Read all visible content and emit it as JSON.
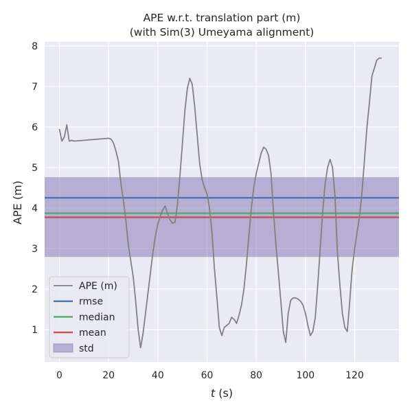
{
  "chart_data": {
    "type": "line",
    "title": "APE w.r.t. translation part (m)",
    "subtitle": "(with Sim(3) Umeyama alignment)",
    "xlabel_italic": "t",
    "xlabel_unit": " (s)",
    "ylabel": "APE (m)",
    "xlim": [
      -6,
      138
    ],
    "ylim": [
      0.2,
      8.1
    ],
    "xticks": [
      0,
      20,
      40,
      60,
      80,
      100,
      120
    ],
    "yticks": [
      1,
      2,
      3,
      4,
      5,
      6,
      7,
      8
    ],
    "grid": true,
    "legend_position": "lower-left",
    "colors": {
      "background": "#eaeaf2",
      "grid": "#ffffff",
      "ape": "#808080",
      "rmse": "#4c72b0",
      "median": "#55a868",
      "mean": "#c44e52",
      "std": "#8172b3"
    },
    "series": [
      {
        "name": "APE (m)",
        "x": [
          0,
          1,
          2,
          3,
          4,
          5,
          6,
          20,
          21,
          22,
          23,
          24,
          25,
          26,
          27,
          28,
          29,
          30,
          31,
          32,
          33,
          34,
          35,
          36,
          37,
          38,
          39,
          40,
          41,
          42,
          43,
          44,
          45,
          46,
          47,
          48,
          49,
          50,
          51,
          52,
          53,
          54,
          55,
          56,
          57,
          58,
          59,
          60,
          61,
          62,
          63,
          64,
          65,
          66,
          67,
          68,
          69,
          70,
          71,
          72,
          73,
          74,
          75,
          76,
          77,
          78,
          79,
          80,
          81,
          82,
          83,
          84,
          85,
          86,
          87,
          88,
          89,
          90,
          91,
          92,
          93,
          94,
          95,
          96,
          97,
          98,
          99,
          100,
          101,
          102,
          103,
          104,
          105,
          106,
          107,
          108,
          109,
          110,
          111,
          112,
          113,
          114,
          115,
          116,
          117,
          118,
          119,
          120,
          121,
          122,
          123,
          124,
          125,
          126,
          127,
          128,
          129,
          130,
          131
        ],
        "y": [
          5.95,
          5.65,
          5.75,
          6.05,
          5.65,
          5.67,
          5.65,
          5.72,
          5.7,
          5.6,
          5.4,
          5.15,
          4.6,
          4.2,
          3.7,
          3.1,
          2.7,
          2.3,
          1.7,
          1.0,
          0.55,
          0.9,
          1.4,
          1.9,
          2.4,
          2.9,
          3.3,
          3.6,
          3.8,
          3.95,
          4.05,
          3.85,
          3.7,
          3.62,
          3.65,
          4.1,
          4.8,
          5.6,
          6.4,
          6.95,
          7.2,
          7.05,
          6.5,
          5.8,
          5.1,
          4.7,
          4.5,
          4.35,
          4.0,
          3.4,
          2.5,
          1.8,
          1.05,
          0.85,
          1.05,
          1.1,
          1.15,
          1.3,
          1.25,
          1.15,
          1.35,
          1.6,
          2.0,
          2.6,
          3.3,
          4.0,
          4.5,
          4.85,
          5.1,
          5.35,
          5.5,
          5.45,
          5.3,
          4.85,
          3.9,
          3.1,
          2.4,
          1.7,
          0.95,
          0.68,
          1.4,
          1.72,
          1.78,
          1.78,
          1.75,
          1.7,
          1.6,
          1.4,
          1.1,
          0.85,
          0.95,
          1.3,
          2.1,
          3.0,
          3.9,
          4.6,
          5.0,
          5.2,
          5.0,
          4.3,
          2.9,
          2.1,
          1.4,
          1.05,
          0.95,
          1.7,
          2.5,
          3.0,
          3.4,
          3.8,
          4.4,
          5.2,
          6.0,
          6.6,
          7.25,
          7.45,
          7.65,
          7.7,
          7.7
        ]
      }
    ],
    "stats": {
      "rmse": 4.25,
      "median": 3.87,
      "mean": 3.77,
      "std_band": [
        2.79,
        4.76
      ]
    },
    "legend": [
      "APE (m)",
      "rmse",
      "median",
      "mean",
      "std"
    ]
  }
}
